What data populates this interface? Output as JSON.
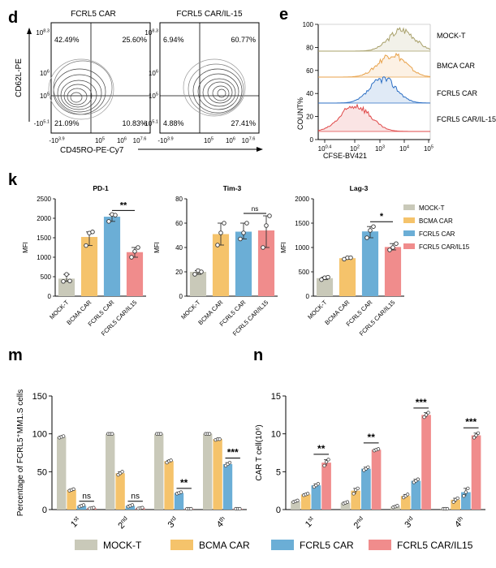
{
  "colors": {
    "mock": "#C9C9B9",
    "bcma": "#F5C36B",
    "fcrl5": "#6BAED6",
    "il15": "#F08C8C",
    "mock_line": "#A8A06A",
    "bcma_line": "#E8A24A",
    "fcrl5_line": "#2C6FC4",
    "il15_line": "#E04848"
  },
  "legend_k": [
    "MOCK-T",
    "BCMA CAR",
    "FCRL5 CAR",
    "FCRL5 CAR/IL15"
  ],
  "legend_bottom": [
    "MOCK-T",
    "BCMA CAR",
    "FCRL5 CAR",
    "FCRL5 CAR/IL15"
  ],
  "panel_d": {
    "letter": "d",
    "xlabel": "CD45RO-PE-Cy7",
    "ylabel": "CD62L-PE",
    "x_ticks": [
      "-10^{3.9}",
      "10^{5}",
      "10^{6}",
      "10^{7.6}"
    ],
    "y_ticks": [
      "-10^{5.1}",
      "10^{5}",
      "10^{6}",
      "10^{8.3}"
    ],
    "plots": [
      {
        "title": "FCRL5 CAR",
        "quadrants": [
          "42.49%",
          "25.60%",
          "21.09%",
          "10.83%"
        ]
      },
      {
        "title": "FCRL5 CAR/IL-15",
        "quadrants": [
          "6.94%",
          "60.77%",
          "4.88%",
          "27.41%"
        ]
      }
    ]
  },
  "panel_e": {
    "letter": "e",
    "xlabel": "CFSE-BV421",
    "ylabel": "COUNT%",
    "y_ticks": [
      "0",
      "20",
      "40",
      "60",
      "80",
      "100"
    ],
    "x_ticks": [
      "10^{0.4}",
      "10^{2}",
      "10^{3}",
      "10^{4}",
      "10^{5}"
    ],
    "labels": [
      "MOCK-T",
      "BMCA CAR",
      "FCRL5 CAR",
      "FCRL5 CAR/IL-15"
    ]
  },
  "chart_data": [
    {
      "type": "bar",
      "panel": "k",
      "title": "PD-1",
      "ylabel": "MFI",
      "categories": [
        "MOCK-T",
        "BCMA CAR",
        "FCRL5 CAR",
        "FCRL5 CAR/IL15"
      ],
      "values": [
        450,
        1520,
        2040,
        1130
      ],
      "points": [
        [
          380,
          560,
          390
        ],
        [
          1300,
          1620,
          1650
        ],
        [
          1920,
          2100,
          2080
        ],
        [
          1000,
          1150,
          1250
        ]
      ],
      "yticks": [
        0,
        500,
        1000,
        1500,
        2000,
        2500
      ],
      "ylim": [
        0,
        2500
      ],
      "sig": {
        "label": "**",
        "from": 2,
        "to": 3,
        "y": 2200
      }
    },
    {
      "type": "bar",
      "panel": "k",
      "title": "Tim-3",
      "ylabel": "MFI",
      "categories": [
        "MOCK-T",
        "BCMA CAR",
        "FCRL5 CAR",
        "FCRL5 CAR/IL15"
      ],
      "values": [
        20,
        51,
        53,
        54
      ],
      "points": [
        [
          18,
          21,
          20
        ],
        [
          42,
          52,
          60
        ],
        [
          47,
          52,
          60
        ],
        [
          40,
          58,
          66
        ]
      ],
      "yticks": [
        0,
        20,
        40,
        60,
        80
      ],
      "ylim": [
        0,
        80
      ],
      "sig": {
        "label": "ns",
        "from": 2,
        "to": 3,
        "y": 68
      }
    },
    {
      "type": "bar",
      "panel": "k",
      "title": "Lag-3",
      "ylabel": "MFI",
      "categories": [
        "MOCK-T",
        "BCMA CAR",
        "FCRL5 CAR",
        "FCRL5 CAR/IL15"
      ],
      "values": [
        370,
        780,
        1330,
        1010
      ],
      "points": [
        [
          340,
          380,
          390
        ],
        [
          760,
          790,
          790
        ],
        [
          1200,
          1350,
          1430
        ],
        [
          950,
          1000,
          1080
        ]
      ],
      "yticks": [
        0,
        500,
        1000,
        1500,
        2000
      ],
      "ylim": [
        0,
        2000
      ],
      "sig": {
        "label": "*",
        "from": 2,
        "to": 3,
        "y": 1530
      }
    },
    {
      "type": "bar",
      "panel": "m",
      "title": "",
      "ylabel": "Percentage of FCRL5⁺MM1.S cells",
      "groups": [
        "1st",
        "2nd",
        "3rd",
        "4th"
      ],
      "series": [
        {
          "key": "mock",
          "values": [
            96,
            100,
            100,
            100
          ],
          "points": [
            [
              95,
              96,
              97
            ],
            [
              100,
              100,
              100
            ],
            [
              100,
              100,
              100
            ],
            [
              100,
              100,
              100
            ]
          ]
        },
        {
          "key": "bcma",
          "values": [
            26,
            48,
            64,
            93
          ],
          "points": [
            [
              25,
              26,
              27
            ],
            [
              46,
              48,
              50
            ],
            [
              62,
              64,
              65
            ],
            [
              92,
              93,
              93
            ]
          ]
        },
        {
          "key": "fcrl5",
          "values": [
            5,
            5,
            22,
            60
          ],
          "points": [
            [
              4,
              5,
              6
            ],
            [
              4,
              5,
              6
            ],
            [
              21,
              22,
              23
            ],
            [
              58,
              60,
              62
            ]
          ]
        },
        {
          "key": "il15",
          "values": [
            2,
            2,
            1,
            1
          ],
          "points": [
            [
              1.5,
              2,
              2.5
            ],
            [
              1.5,
              2,
              2.5
            ],
            [
              1,
              1,
              1
            ],
            [
              1,
              1,
              1
            ]
          ]
        }
      ],
      "yticks": [
        0,
        50,
        100,
        150
      ],
      "ylim": [
        0,
        150
      ],
      "sig": [
        {
          "label": "ns",
          "group": 0,
          "from": 2,
          "to": 3,
          "y": 11
        },
        {
          "label": "ns",
          "group": 1,
          "from": 2,
          "to": 3,
          "y": 11
        },
        {
          "label": "**",
          "group": 2,
          "from": 2,
          "to": 3,
          "y": 28
        },
        {
          "label": "***",
          "group": 3,
          "from": 2,
          "to": 3,
          "y": 68
        }
      ]
    },
    {
      "type": "bar",
      "panel": "n",
      "title": "",
      "ylabel": "CAR T cell(10⁶)",
      "groups": [
        "1st",
        "2nd",
        "3rd",
        "4th"
      ],
      "series": [
        {
          "key": "mock",
          "values": [
            1.1,
            0.9,
            0.4,
            0.1
          ],
          "points": [
            [
              1.0,
              1.1,
              1.2
            ],
            [
              0.8,
              0.9,
              1.0
            ],
            [
              0.3,
              0.4,
              0.5
            ],
            [
              0.1,
              0.1,
              0.1
            ]
          ]
        },
        {
          "key": "bcma",
          "values": [
            2.0,
            2.5,
            1.8,
            1.3
          ],
          "points": [
            [
              1.9,
              2.0,
              2.1
            ],
            [
              2.1,
              2.6,
              2.8
            ],
            [
              1.6,
              1.8,
              2.0
            ],
            [
              1.0,
              1.3,
              1.5
            ]
          ]
        },
        {
          "key": "fcrl5",
          "values": [
            3.2,
            5.4,
            3.8,
            2.3
          ],
          "points": [
            [
              3.0,
              3.2,
              3.4
            ],
            [
              5.2,
              5.4,
              5.6
            ],
            [
              3.6,
              3.8,
              4.0
            ],
            [
              1.8,
              2.3,
              2.8
            ]
          ]
        },
        {
          "key": "il15",
          "values": [
            6.2,
            7.9,
            12.5,
            9.8
          ],
          "points": [
            [
              5.8,
              6.3,
              6.6
            ],
            [
              7.8,
              7.9,
              8.0
            ],
            [
              12.2,
              12.5,
              12.8
            ],
            [
              9.5,
              9.8,
              10.1
            ]
          ]
        }
      ],
      "yticks": [
        0,
        5,
        10,
        15
      ],
      "ylim": [
        0,
        15
      ],
      "sig": [
        {
          "label": "**",
          "group": 0,
          "from": 2,
          "to": 3,
          "y": 7.3
        },
        {
          "label": "**",
          "group": 1,
          "from": 2,
          "to": 3,
          "y": 8.8
        },
        {
          "label": "***",
          "group": 2,
          "from": 2,
          "to": 3,
          "y": 13.4
        },
        {
          "label": "***",
          "group": 3,
          "from": 2,
          "to": 3,
          "y": 10.8
        }
      ]
    }
  ],
  "panel_letters": {
    "k": "k",
    "m": "m",
    "n": "n"
  }
}
